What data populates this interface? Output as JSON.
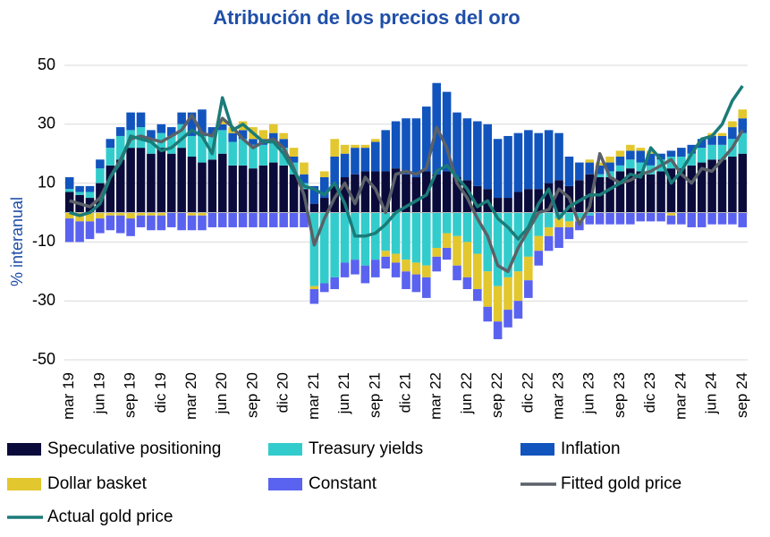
{
  "chart_data": {
    "type": "bar",
    "stacked": true,
    "title": "Atribución de los precios del oro",
    "y_label": "% interanual",
    "categories": [
      "mar 19",
      null,
      null,
      "jun 19",
      null,
      null,
      "sep 19",
      null,
      null,
      "dic 19",
      null,
      null,
      "mar 20",
      null,
      null,
      "jun 20",
      null,
      null,
      "sep 20",
      null,
      null,
      "dic 20",
      null,
      null,
      "mar 21",
      null,
      null,
      "jun 21",
      null,
      null,
      "sep 21",
      null,
      null,
      "dic 21",
      null,
      null,
      "mar 22",
      null,
      null,
      "jun 22",
      null,
      null,
      "sep 22",
      null,
      null,
      "dic 22",
      null,
      null,
      "mar 23",
      null,
      null,
      "jun 23",
      null,
      null,
      "sep 23",
      null,
      null,
      "dic 23",
      null,
      null,
      "mar 24",
      null,
      null,
      "jun 24",
      null,
      null,
      "sep 24"
    ],
    "ylim": [
      -50,
      50
    ],
    "yticks": [
      50,
      30,
      10,
      -10,
      -30,
      -50
    ],
    "grid": true,
    "series": [
      {
        "name": "Speculative positioning",
        "type": "bar",
        "color": "#0b0b3b",
        "values": [
          7,
          6,
          5,
          10,
          16,
          18,
          22,
          22,
          20,
          22,
          20,
          22,
          19,
          17,
          18,
          20,
          16,
          16,
          15,
          16,
          17,
          16,
          13,
          8,
          3,
          5,
          9,
          12,
          13,
          14,
          14,
          14,
          15,
          13,
          12,
          14,
          13,
          14,
          12,
          11,
          9,
          8,
          5,
          5,
          7,
          8,
          8,
          10,
          11,
          9,
          11,
          13,
          12,
          12,
          14,
          15,
          14,
          13,
          14,
          15,
          15,
          16,
          17,
          18,
          18,
          19,
          20
        ]
      },
      {
        "name": "Treasury yields",
        "type": "bar",
        "color": "#33cccc",
        "values": [
          1,
          1,
          2,
          5,
          6,
          8,
          6,
          7,
          5,
          5,
          6,
          8,
          7,
          9,
          8,
          8,
          8,
          9,
          8,
          7,
          7,
          6,
          4,
          2,
          -25,
          -24,
          -22,
          -17,
          -16,
          -18,
          -16,
          -13,
          -14,
          -16,
          -17,
          -18,
          -12,
          -7,
          -8,
          -10,
          -14,
          -20,
          -25,
          -22,
          -20,
          -15,
          -8,
          -5,
          -2,
          -3,
          -2,
          -1,
          1,
          2,
          2,
          3,
          3,
          3,
          4,
          4,
          4,
          4,
          5,
          5,
          5,
          6,
          7
        ]
      },
      {
        "name": "Inflation",
        "type": "bar",
        "color": "#1254bd",
        "values": [
          4,
          2,
          2,
          3,
          3,
          3,
          6,
          5,
          3,
          3,
          3,
          4,
          8,
          9,
          3,
          2,
          3,
          3,
          2,
          2,
          3,
          3,
          2,
          3,
          6,
          7,
          10,
          8,
          9,
          8,
          10,
          14,
          16,
          19,
          20,
          22,
          31,
          27,
          22,
          21,
          22,
          22,
          20,
          21,
          20,
          20,
          19,
          18,
          16,
          10,
          6,
          4,
          3,
          3,
          3,
          3,
          4,
          4,
          2,
          2,
          3,
          3,
          3,
          3,
          3,
          4,
          5
        ]
      },
      {
        "name": "Dollar basket",
        "type": "bar",
        "color": "#e2c72e",
        "values": [
          -2,
          -3,
          -3,
          -2,
          -1,
          -1,
          -2,
          -1,
          -1,
          -1,
          0,
          0,
          -1,
          -1,
          0,
          1,
          2,
          3,
          4,
          3,
          3,
          2,
          3,
          4,
          -1,
          2,
          6,
          3,
          1,
          1,
          1,
          -2,
          -3,
          -4,
          -4,
          -4,
          -3,
          -5,
          -10,
          -12,
          -12,
          -12,
          -12,
          -11,
          -10,
          -8,
          -5,
          -3,
          -3,
          -2,
          -1,
          1,
          1,
          2,
          2,
          2,
          1,
          1,
          0,
          -1,
          0,
          0,
          0,
          1,
          1,
          2,
          3
        ]
      },
      {
        "name": "Constant",
        "type": "bar",
        "color": "#5a62f0",
        "values": [
          -8,
          -7,
          -6,
          -5,
          -5,
          -6,
          -6,
          -4,
          -5,
          -5,
          -5,
          -6,
          -5,
          -5,
          -5,
          -5,
          -5,
          -5,
          -5,
          -5,
          -5,
          -5,
          -5,
          -5,
          -5,
          -3,
          -4,
          -5,
          -5,
          -6,
          -6,
          -4,
          -5,
          -6,
          -6,
          -7,
          -5,
          -4,
          -5,
          -4,
          -4,
          -5,
          -6,
          -6,
          -6,
          -6,
          -5,
          -5,
          -7,
          -4,
          -3,
          -3,
          -4,
          -4,
          -4,
          -4,
          -3,
          -3,
          -3,
          -3,
          -4,
          -5,
          -5,
          -4,
          -4,
          -4,
          -5
        ]
      },
      {
        "name": "Fitted gold price",
        "type": "line",
        "color": "#5b6168",
        "values": [
          4,
          3,
          2,
          5,
          12,
          18,
          25,
          26,
          25,
          24,
          26,
          28,
          33,
          27,
          26,
          32,
          29,
          25,
          22,
          24,
          25,
          22,
          15,
          6,
          -11,
          -2,
          5,
          10,
          3,
          12,
          8,
          0,
          13,
          14,
          13,
          15,
          29,
          22,
          10,
          5,
          -2,
          -8,
          -18,
          -20,
          -12,
          -6,
          0,
          1,
          8,
          5,
          -4,
          2,
          20,
          12,
          10,
          11,
          13,
          14,
          16,
          18,
          13,
          10,
          15,
          14,
          18,
          22,
          28
        ]
      },
      {
        "name": "Actual gold price",
        "type": "line",
        "color": "#1b7b78",
        "values": [
          0,
          -1,
          0,
          3,
          12,
          17,
          26,
          25,
          24,
          21,
          22,
          25,
          28,
          26,
          20,
          39,
          28,
          30,
          27,
          24,
          24,
          20,
          14,
          9,
          8,
          6,
          10,
          3,
          -8,
          -8,
          -7,
          -4,
          0,
          2,
          4,
          6,
          14,
          16,
          12,
          8,
          2,
          4,
          -2,
          -5,
          -9,
          -5,
          3,
          8,
          -2,
          2,
          4,
          6,
          6,
          8,
          10,
          13,
          12,
          22,
          18,
          10,
          14,
          20,
          25,
          26,
          30,
          38,
          43
        ]
      }
    ]
  }
}
